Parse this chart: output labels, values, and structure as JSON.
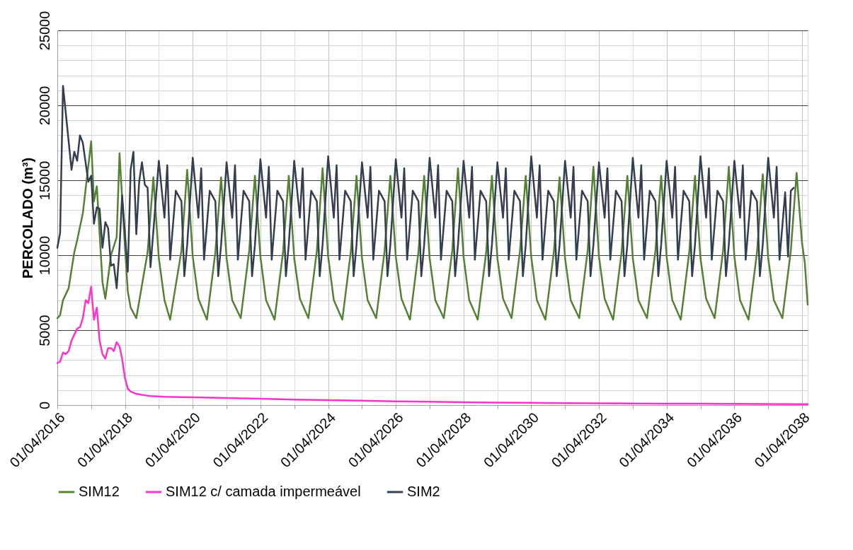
{
  "chart_data": {
    "type": "line",
    "ylabel": "PERCOLADO (m³)",
    "xlim": [
      "2016-04-01",
      "2038-06-01"
    ],
    "xticks": [
      {
        "value": "2016-04-01",
        "label": "01/04/2016"
      },
      {
        "value": "2017-04-01",
        "label": null
      },
      {
        "value": "2018-04-01",
        "label": "01/04/2018"
      },
      {
        "value": "2019-04-01",
        "label": null
      },
      {
        "value": "2020-04-01",
        "label": "01/04/2020"
      },
      {
        "value": "2021-04-01",
        "label": null
      },
      {
        "value": "2022-04-01",
        "label": "01/04/2022"
      },
      {
        "value": "2023-04-01",
        "label": null
      },
      {
        "value": "2024-04-01",
        "label": "01/04/2024"
      },
      {
        "value": "2025-04-01",
        "label": null
      },
      {
        "value": "2026-04-01",
        "label": "01/04/2026"
      },
      {
        "value": "2027-04-01",
        "label": null
      },
      {
        "value": "2028-04-01",
        "label": "01/04/2028"
      },
      {
        "value": "2029-04-01",
        "label": null
      },
      {
        "value": "2030-04-01",
        "label": "01/04/2030"
      },
      {
        "value": "2031-04-01",
        "label": null
      },
      {
        "value": "2032-04-01",
        "label": "01/04/2032"
      },
      {
        "value": "2033-04-01",
        "label": null
      },
      {
        "value": "2034-04-01",
        "label": "01/04/2034"
      },
      {
        "value": "2035-04-01",
        "label": null
      },
      {
        "value": "2036-04-01",
        "label": "01/04/2036"
      },
      {
        "value": "2037-04-01",
        "label": null
      },
      {
        "value": "2038-04-01",
        "label": "01/04/2038"
      }
    ],
    "ylim": [
      0,
      25000
    ],
    "yticks": [
      0,
      {
        "value": 1000,
        "label": null
      },
      {
        "value": 2000,
        "label": null
      },
      {
        "value": 3000,
        "label": null
      },
      {
        "value": 4000,
        "label": null
      },
      5000,
      {
        "value": 6000,
        "label": null
      },
      {
        "value": 7000,
        "label": null
      },
      {
        "value": 8000,
        "label": null
      },
      {
        "value": 9000,
        "label": null
      },
      10000,
      {
        "value": 11000,
        "label": null
      },
      {
        "value": 12000,
        "label": null
      },
      {
        "value": 13000,
        "label": null
      },
      {
        "value": 14000,
        "label": null
      },
      15000,
      {
        "value": 16000,
        "label": null
      },
      {
        "value": 17000,
        "label": null
      },
      {
        "value": 18000,
        "label": null
      },
      {
        "value": 19000,
        "label": null
      },
      20000,
      {
        "value": 21000,
        "label": null
      },
      {
        "value": 22000,
        "label": null
      },
      {
        "value": 23000,
        "label": null
      },
      {
        "value": 24000,
        "label": null
      },
      25000
    ],
    "grid": true,
    "legend": "bottom",
    "line_style": "solid",
    "series": [
      {
        "name": "SIM12",
        "color": "#548235",
        "x": [
          "2016-04",
          "2016-05",
          "2016-06",
          "2016-08",
          "2016-10",
          "2016-11",
          "2017-01",
          "2017-04",
          "2017-05",
          "2017-06",
          "2017-08",
          "2017-09",
          "2017-11",
          "2018-01",
          "2018-02",
          "2018-04",
          "2018-05",
          "2018-06",
          "2018-08",
          "2018-12",
          "2019-02",
          "2019-04",
          "2019-06",
          "2019-08",
          "2019-12",
          "2020-02",
          "2020-04",
          "2020-06",
          "2020-09",
          "2020-12",
          "2021-02",
          "2021-04",
          "2021-06",
          "2021-09",
          "2021-12",
          "2022-02",
          "2022-04",
          "2022-06",
          "2022-09",
          "2022-12",
          "2023-02",
          "2023-04",
          "2023-06",
          "2023-09",
          "2023-12",
          "2024-02",
          "2024-04",
          "2024-06",
          "2024-09",
          "2024-12",
          "2025-02",
          "2025-04",
          "2025-06",
          "2025-09",
          "2025-12",
          "2026-02",
          "2026-04",
          "2026-06",
          "2026-09",
          "2026-12",
          "2027-02",
          "2027-04",
          "2027-06",
          "2027-09",
          "2027-12",
          "2028-02",
          "2028-04",
          "2028-06",
          "2028-09",
          "2028-12",
          "2029-02",
          "2029-04",
          "2029-06",
          "2029-09",
          "2029-12",
          "2030-02",
          "2030-04",
          "2030-06",
          "2030-09",
          "2030-12",
          "2031-02",
          "2031-04",
          "2031-06",
          "2031-09",
          "2031-12",
          "2032-02",
          "2032-04",
          "2032-06",
          "2032-09",
          "2032-12",
          "2033-02",
          "2033-04",
          "2033-06",
          "2033-09",
          "2033-12",
          "2034-02",
          "2034-04",
          "2034-06",
          "2034-09",
          "2034-12",
          "2035-02",
          "2035-04",
          "2035-06",
          "2035-09",
          "2035-12",
          "2036-02",
          "2036-04",
          "2036-06",
          "2036-09",
          "2036-12",
          "2037-02",
          "2037-04",
          "2037-06",
          "2037-09",
          "2037-12",
          "2038-02",
          "2038-04",
          "2038-05",
          "2038-06"
        ],
        "values": [
          5800,
          6000,
          7000,
          7800,
          10200,
          11000,
          12800,
          17600,
          13600,
          14600,
          8200,
          7100,
          10000,
          11200,
          16800,
          10500,
          7600,
          6500,
          5800,
          10200,
          15200,
          9800,
          7000,
          5700,
          10300,
          15700,
          9900,
          7100,
          5700,
          10200,
          15200,
          9800,
          7000,
          5800,
          10300,
          15300,
          9900,
          7000,
          5700,
          10200,
          15300,
          9800,
          7100,
          5800,
          10300,
          15800,
          9900,
          7000,
          5700,
          10200,
          15300,
          9800,
          7000,
          5800,
          10300,
          15300,
          9900,
          7100,
          5700,
          10200,
          15300,
          9800,
          7000,
          5800,
          10300,
          15800,
          9900,
          7000,
          5700,
          10200,
          15300,
          9800,
          7100,
          5800,
          10300,
          15300,
          9900,
          7000,
          5700,
          10200,
          15200,
          9800,
          7000,
          5800,
          10300,
          15900,
          9900,
          7100,
          5700,
          10200,
          15300,
          9800,
          7000,
          5800,
          10300,
          15300,
          9900,
          7000,
          5700,
          10200,
          15300,
          9800,
          7100,
          5800,
          10300,
          15900,
          9900,
          7000,
          5700,
          10200,
          15400,
          9800,
          7000,
          5800,
          10300,
          15500,
          10800,
          9500,
          6700
        ]
      },
      {
        "name": "SIM12 c/ camada impermeável",
        "color": "#ff33cc",
        "x": [
          "2016-04",
          "2016-05",
          "2016-06",
          "2016-07",
          "2016-08",
          "2016-09",
          "2016-10",
          "2016-11",
          "2016-12",
          "2017-01",
          "2017-02",
          "2017-03",
          "2017-04",
          "2017-05",
          "2017-06",
          "2017-07",
          "2017-08",
          "2017-09",
          "2017-10",
          "2017-11",
          "2017-12",
          "2018-01",
          "2018-02",
          "2018-03",
          "2018-04",
          "2018-05",
          "2018-06",
          "2018-08",
          "2018-10",
          "2019-01",
          "2019-06",
          "2020-04",
          "2021-04",
          "2022-04",
          "2023-04",
          "2024-04",
          "2025-04",
          "2026-04",
          "2027-04",
          "2028-04",
          "2029-04",
          "2030-04",
          "2031-04",
          "2032-04",
          "2033-04",
          "2034-04",
          "2035-04",
          "2036-04",
          "2037-04",
          "2038-06"
        ],
        "values": [
          2800,
          2900,
          3500,
          3400,
          3600,
          4300,
          4700,
          5100,
          5200,
          5800,
          7000,
          6800,
          7900,
          5700,
          6500,
          4300,
          3400,
          3100,
          3800,
          3800,
          3600,
          4200,
          3900,
          3100,
          1800,
          1100,
          900,
          750,
          680,
          600,
          550,
          520,
          470,
          420,
          370,
          330,
          290,
          250,
          220,
          190,
          170,
          150,
          130,
          120,
          110,
          100,
          90,
          80,
          70,
          60
        ]
      },
      {
        "name": "SIM2",
        "color": "#333f50",
        "x": [
          "2016-04",
          "2016-05",
          "2016-06",
          "2016-07",
          "2016-09",
          "2016-10",
          "2016-11",
          "2016-12",
          "2017-01",
          "2017-03",
          "2017-04",
          "2017-05",
          "2017-06",
          "2017-07",
          "2017-08",
          "2017-09",
          "2017-10",
          "2017-11",
          "2017-12",
          "2018-01",
          "2018-02",
          "2018-03",
          "2018-05",
          "2018-06",
          "2018-07",
          "2018-08",
          "2018-09",
          "2018-10",
          "2018-11",
          "2018-12",
          "2019-01",
          "2019-02",
          "2019-04",
          "2019-06",
          "2019-07",
          "2019-08",
          "2019-10",
          "2019-12",
          "2020-01",
          "2020-02",
          "2020-04",
          "2020-06",
          "2020-07",
          "2020-08",
          "2020-10",
          "2020-12",
          "2021-01",
          "2021-02",
          "2021-04",
          "2021-06",
          "2021-07",
          "2021-08",
          "2021-10",
          "2021-12",
          "2022-01",
          "2022-02",
          "2022-04",
          "2022-06",
          "2022-07",
          "2022-08",
          "2022-10",
          "2022-12",
          "2023-01",
          "2023-02",
          "2023-04",
          "2023-06",
          "2023-07",
          "2023-08",
          "2023-10",
          "2023-12",
          "2024-01",
          "2024-02",
          "2024-04",
          "2024-06",
          "2024-07",
          "2024-08",
          "2024-10",
          "2024-12",
          "2025-01",
          "2025-02",
          "2025-04",
          "2025-06",
          "2025-07",
          "2025-08",
          "2025-10",
          "2025-12",
          "2026-01",
          "2026-02",
          "2026-04",
          "2026-06",
          "2026-07",
          "2026-08",
          "2026-10",
          "2026-12",
          "2027-01",
          "2027-02",
          "2027-04",
          "2027-06",
          "2027-07",
          "2027-08",
          "2027-10",
          "2027-12",
          "2028-01",
          "2028-02",
          "2028-04",
          "2028-06",
          "2028-07",
          "2028-08",
          "2028-10",
          "2028-12",
          "2029-01",
          "2029-02",
          "2029-04",
          "2029-06",
          "2029-07",
          "2029-08",
          "2029-10",
          "2029-12",
          "2030-01",
          "2030-02",
          "2030-04",
          "2030-06",
          "2030-07",
          "2030-08",
          "2030-10",
          "2030-12",
          "2031-01",
          "2031-02",
          "2031-04",
          "2031-06",
          "2031-07",
          "2031-08",
          "2031-10",
          "2031-12",
          "2032-01",
          "2032-02",
          "2032-04",
          "2032-06",
          "2032-07",
          "2032-08",
          "2032-10",
          "2032-12",
          "2033-01",
          "2033-02",
          "2033-04",
          "2033-06",
          "2033-07",
          "2033-08",
          "2033-10",
          "2033-12",
          "2034-01",
          "2034-02",
          "2034-04",
          "2034-06",
          "2034-07",
          "2034-08",
          "2034-10",
          "2034-12",
          "2035-01",
          "2035-02",
          "2035-04",
          "2035-06",
          "2035-07",
          "2035-08",
          "2035-10",
          "2035-12",
          "2036-01",
          "2036-02",
          "2036-04",
          "2036-06",
          "2036-07",
          "2036-08",
          "2036-10",
          "2036-12",
          "2037-01",
          "2037-02",
          "2037-04",
          "2037-06",
          "2037-07",
          "2037-08",
          "2037-10",
          "2037-11",
          "2037-12",
          "2038-01"
        ],
        "values": [
          10500,
          11500,
          21300,
          19500,
          15700,
          16900,
          16300,
          18000,
          17500,
          14900,
          15300,
          12100,
          13200,
          13100,
          10500,
          12200,
          11800,
          9300,
          9400,
          7800,
          10500,
          14000,
          8900,
          15700,
          16900,
          11400,
          14900,
          16200,
          14700,
          14500,
          9200,
          11600,
          16300,
          12500,
          16000,
          9700,
          14300,
          13600,
          8600,
          10700,
          16500,
          12500,
          15800,
          9700,
          14300,
          13600,
          8600,
          10700,
          16200,
          12500,
          16000,
          9700,
          14300,
          13600,
          8600,
          10700,
          16400,
          12500,
          15900,
          9700,
          14300,
          13600,
          8600,
          10700,
          16300,
          12500,
          15800,
          9700,
          14300,
          13600,
          8600,
          10700,
          16600,
          12500,
          16000,
          9700,
          14300,
          13600,
          8600,
          10700,
          16200,
          12500,
          15900,
          9700,
          14300,
          13600,
          8600,
          10700,
          16400,
          12500,
          15800,
          9700,
          14300,
          13600,
          8600,
          10700,
          16500,
          12500,
          16000,
          9700,
          14300,
          13600,
          8600,
          10700,
          16300,
          12500,
          15900,
          9700,
          14300,
          13600,
          8600,
          10700,
          16200,
          12500,
          15800,
          9700,
          14300,
          13600,
          8600,
          10700,
          16600,
          12500,
          16000,
          9700,
          14300,
          13600,
          8600,
          10700,
          16300,
          12500,
          15900,
          9700,
          14300,
          13600,
          8600,
          10700,
          16200,
          12500,
          15800,
          9700,
          14300,
          13600,
          8600,
          10700,
          16500,
          12500,
          16000,
          9700,
          14300,
          13600,
          8600,
          10700,
          16300,
          12500,
          15900,
          9700,
          14300,
          13600,
          8600,
          10700,
          16600,
          12500,
          15800,
          9700,
          14300,
          13600,
          8600,
          10700,
          16300,
          12500,
          16000,
          9700,
          14300,
          13600,
          8600,
          10700,
          16500,
          12500,
          15900,
          9700,
          14200,
          9900,
          14300,
          14500
        ]
      }
    ]
  }
}
